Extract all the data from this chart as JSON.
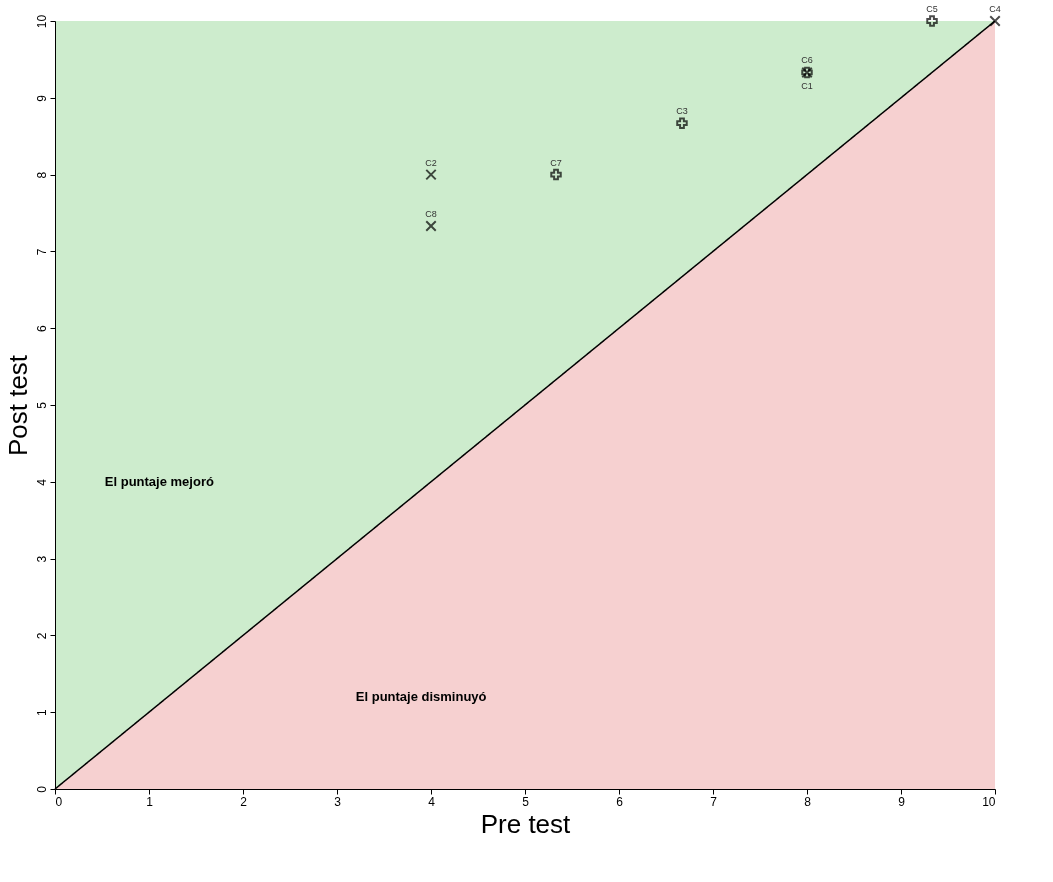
{
  "chart_data": {
    "type": "scatter",
    "xlabel": "Pre test",
    "ylabel": "Post test",
    "xlim": [
      0,
      10
    ],
    "ylim": [
      0,
      10
    ],
    "xticks": [
      0,
      1,
      2,
      3,
      4,
      5,
      6,
      7,
      8,
      9,
      10
    ],
    "yticks": [
      0,
      1,
      2,
      3,
      4,
      5,
      6,
      7,
      8,
      9,
      10
    ],
    "grid": false,
    "series": [
      {
        "type": "area",
        "color": "#f6d0d0",
        "line_style": "solid",
        "x": [
          0,
          10
        ],
        "values": [
          0,
          10
        ]
      },
      {
        "marker": "cross",
        "color": "#000000",
        "x": [
          5.33,
          6.67,
          8,
          9.33
        ],
        "values": [
          8,
          8.67,
          9.33,
          10
        ]
      },
      {
        "marker": "x",
        "color": "#000000",
        "x": [
          4,
          4,
          8,
          10
        ],
        "values": [
          8,
          7.33,
          9.33,
          10
        ]
      }
    ],
    "annotations": [
      {
        "text": "C2",
        "x": 4,
        "y": 8
      },
      {
        "text": "C8",
        "x": 4,
        "y": 7.33
      },
      {
        "text": "C7",
        "x": 5.33,
        "y": 8
      },
      {
        "text": "C3",
        "x": 6.67,
        "y": 8.67
      },
      {
        "text": "C6",
        "x": 8,
        "y": 9.33
      },
      {
        "text": "C1",
        "x": 8,
        "y": 9.33
      },
      {
        "text": "C5",
        "x": 9.33,
        "y": 10
      },
      {
        "text": "C4",
        "x": 10,
        "y": 10
      },
      "El puntaje mejoró",
      "El puntaje disminuyó"
    ]
  }
}
